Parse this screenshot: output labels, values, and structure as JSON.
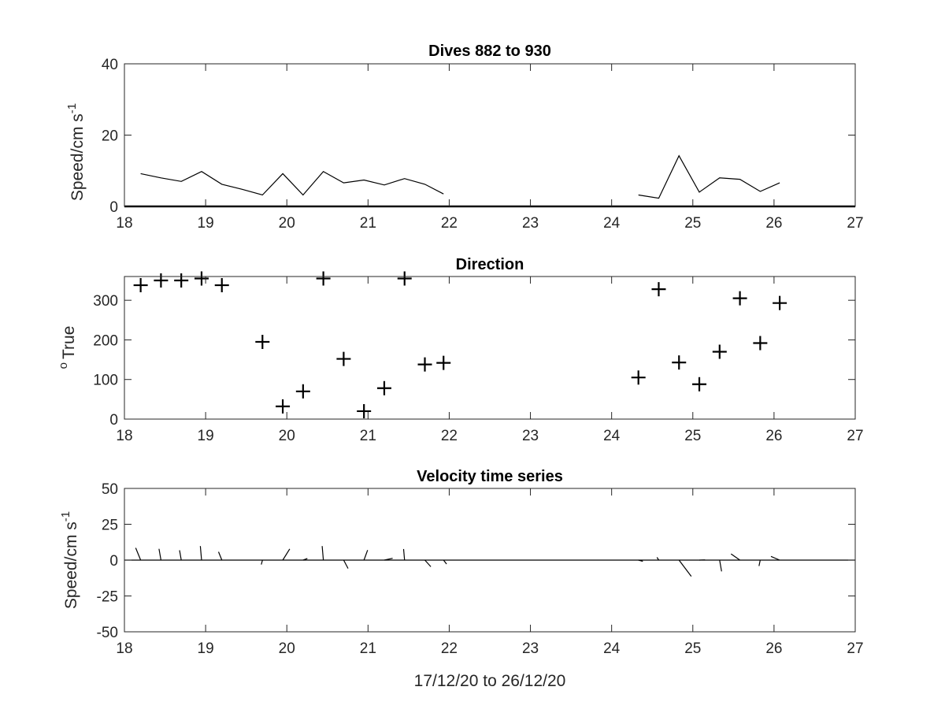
{
  "chart_data": [
    {
      "type": "line",
      "title": "Dives 882 to 930",
      "xlabel": "",
      "ylabel": "Speed/cm s",
      "ylabel_superscript": "-1",
      "xlim": [
        18,
        27
      ],
      "ylim": [
        0,
        40
      ],
      "xticks": [
        "18",
        "19",
        "20",
        "21",
        "22",
        "23",
        "24",
        "25",
        "26",
        "27"
      ],
      "yticks": [
        "0",
        "20",
        "40"
      ],
      "grid": false,
      "series": [
        {
          "segments": [
            [
              [
                18.2,
                9.2
              ],
              [
                18.45,
                8.0
              ],
              [
                18.7,
                7.0
              ],
              [
                18.95,
                9.8
              ],
              [
                19.2,
                6.2
              ],
              [
                19.45,
                4.8
              ],
              [
                19.7,
                3.2
              ],
              [
                19.95,
                9.2
              ],
              [
                20.2,
                3.2
              ],
              [
                20.45,
                9.8
              ],
              [
                20.7,
                6.6
              ],
              [
                20.95,
                7.4
              ],
              [
                21.2,
                6.0
              ],
              [
                21.45,
                7.8
              ],
              [
                21.7,
                6.2
              ],
              [
                21.93,
                3.5
              ]
            ],
            [
              [
                24.33,
                3.2
              ],
              [
                24.58,
                2.3
              ],
              [
                24.83,
                14.2
              ],
              [
                25.08,
                4.0
              ],
              [
                25.33,
                8.0
              ],
              [
                25.58,
                7.6
              ],
              [
                25.83,
                4.2
              ],
              [
                26.07,
                6.6
              ]
            ]
          ],
          "baseline": 0
        }
      ]
    },
    {
      "type": "scatter",
      "title": "Direction",
      "xlabel": "",
      "ylabel": "True",
      "ylabel_superscript": "o",
      "xlim": [
        18,
        27
      ],
      "ylim": [
        0,
        360
      ],
      "xticks": [
        "18",
        "19",
        "20",
        "21",
        "22",
        "23",
        "24",
        "25",
        "26",
        "27"
      ],
      "yticks": [
        "0",
        "100",
        "200",
        "300"
      ],
      "marker": "+",
      "grid": false,
      "series": [
        {
          "points": [
            [
              18.2,
              338
            ],
            [
              18.45,
              350
            ],
            [
              18.7,
              350
            ],
            [
              18.95,
              355
            ],
            [
              19.2,
              338
            ],
            [
              19.7,
              195
            ],
            [
              19.95,
              32
            ],
            [
              20.2,
              70
            ],
            [
              20.45,
              355
            ],
            [
              20.7,
              152
            ],
            [
              20.95,
              20
            ],
            [
              21.2,
              78
            ],
            [
              21.45,
              355
            ],
            [
              21.7,
              138
            ],
            [
              21.93,
              142
            ],
            [
              24.33,
              105
            ],
            [
              24.58,
              328
            ],
            [
              24.83,
              143
            ],
            [
              25.08,
              88
            ],
            [
              25.33,
              170
            ],
            [
              25.58,
              305
            ],
            [
              25.83,
              192
            ],
            [
              26.07,
              293
            ]
          ]
        }
      ]
    },
    {
      "type": "quiver",
      "title": "Velocity time series",
      "xlabel": "17/12/20 to 26/12/20",
      "ylabel": "Speed/cm s",
      "ylabel_superscript": "-1",
      "xlim": [
        18,
        27
      ],
      "ylim": [
        -50,
        50
      ],
      "xticks": [
        "18",
        "19",
        "20",
        "21",
        "22",
        "23",
        "24",
        "25",
        "26",
        "27"
      ],
      "yticks": [
        "50",
        "25",
        "0",
        "-25",
        "-50"
      ],
      "grid": false,
      "series": [
        {
          "vectors": [
            [
              18.2,
              9.2,
              338
            ],
            [
              18.45,
              8.0,
              350
            ],
            [
              18.7,
              7.0,
              350
            ],
            [
              18.95,
              9.8,
              355
            ],
            [
              19.2,
              6.2,
              338
            ],
            [
              19.7,
              3.2,
              195
            ],
            [
              19.95,
              9.2,
              32
            ],
            [
              20.2,
              3.2,
              70
            ],
            [
              20.45,
              9.8,
              355
            ],
            [
              20.7,
              6.6,
              152
            ],
            [
              20.95,
              7.4,
              20
            ],
            [
              21.2,
              6.0,
              78
            ],
            [
              21.45,
              7.8,
              355
            ],
            [
              21.7,
              6.2,
              138
            ],
            [
              21.93,
              3.5,
              142
            ],
            [
              24.33,
              3.2,
              105
            ],
            [
              24.58,
              2.3,
              328
            ],
            [
              24.83,
              14.2,
              143
            ],
            [
              25.08,
              4.0,
              88
            ],
            [
              25.33,
              8.0,
              170
            ],
            [
              25.58,
              7.6,
              305
            ],
            [
              25.83,
              4.2,
              192
            ],
            [
              26.07,
              6.6,
              293
            ]
          ],
          "vector_fields": [
            "x",
            "speed",
            "direction"
          ]
        }
      ]
    }
  ]
}
